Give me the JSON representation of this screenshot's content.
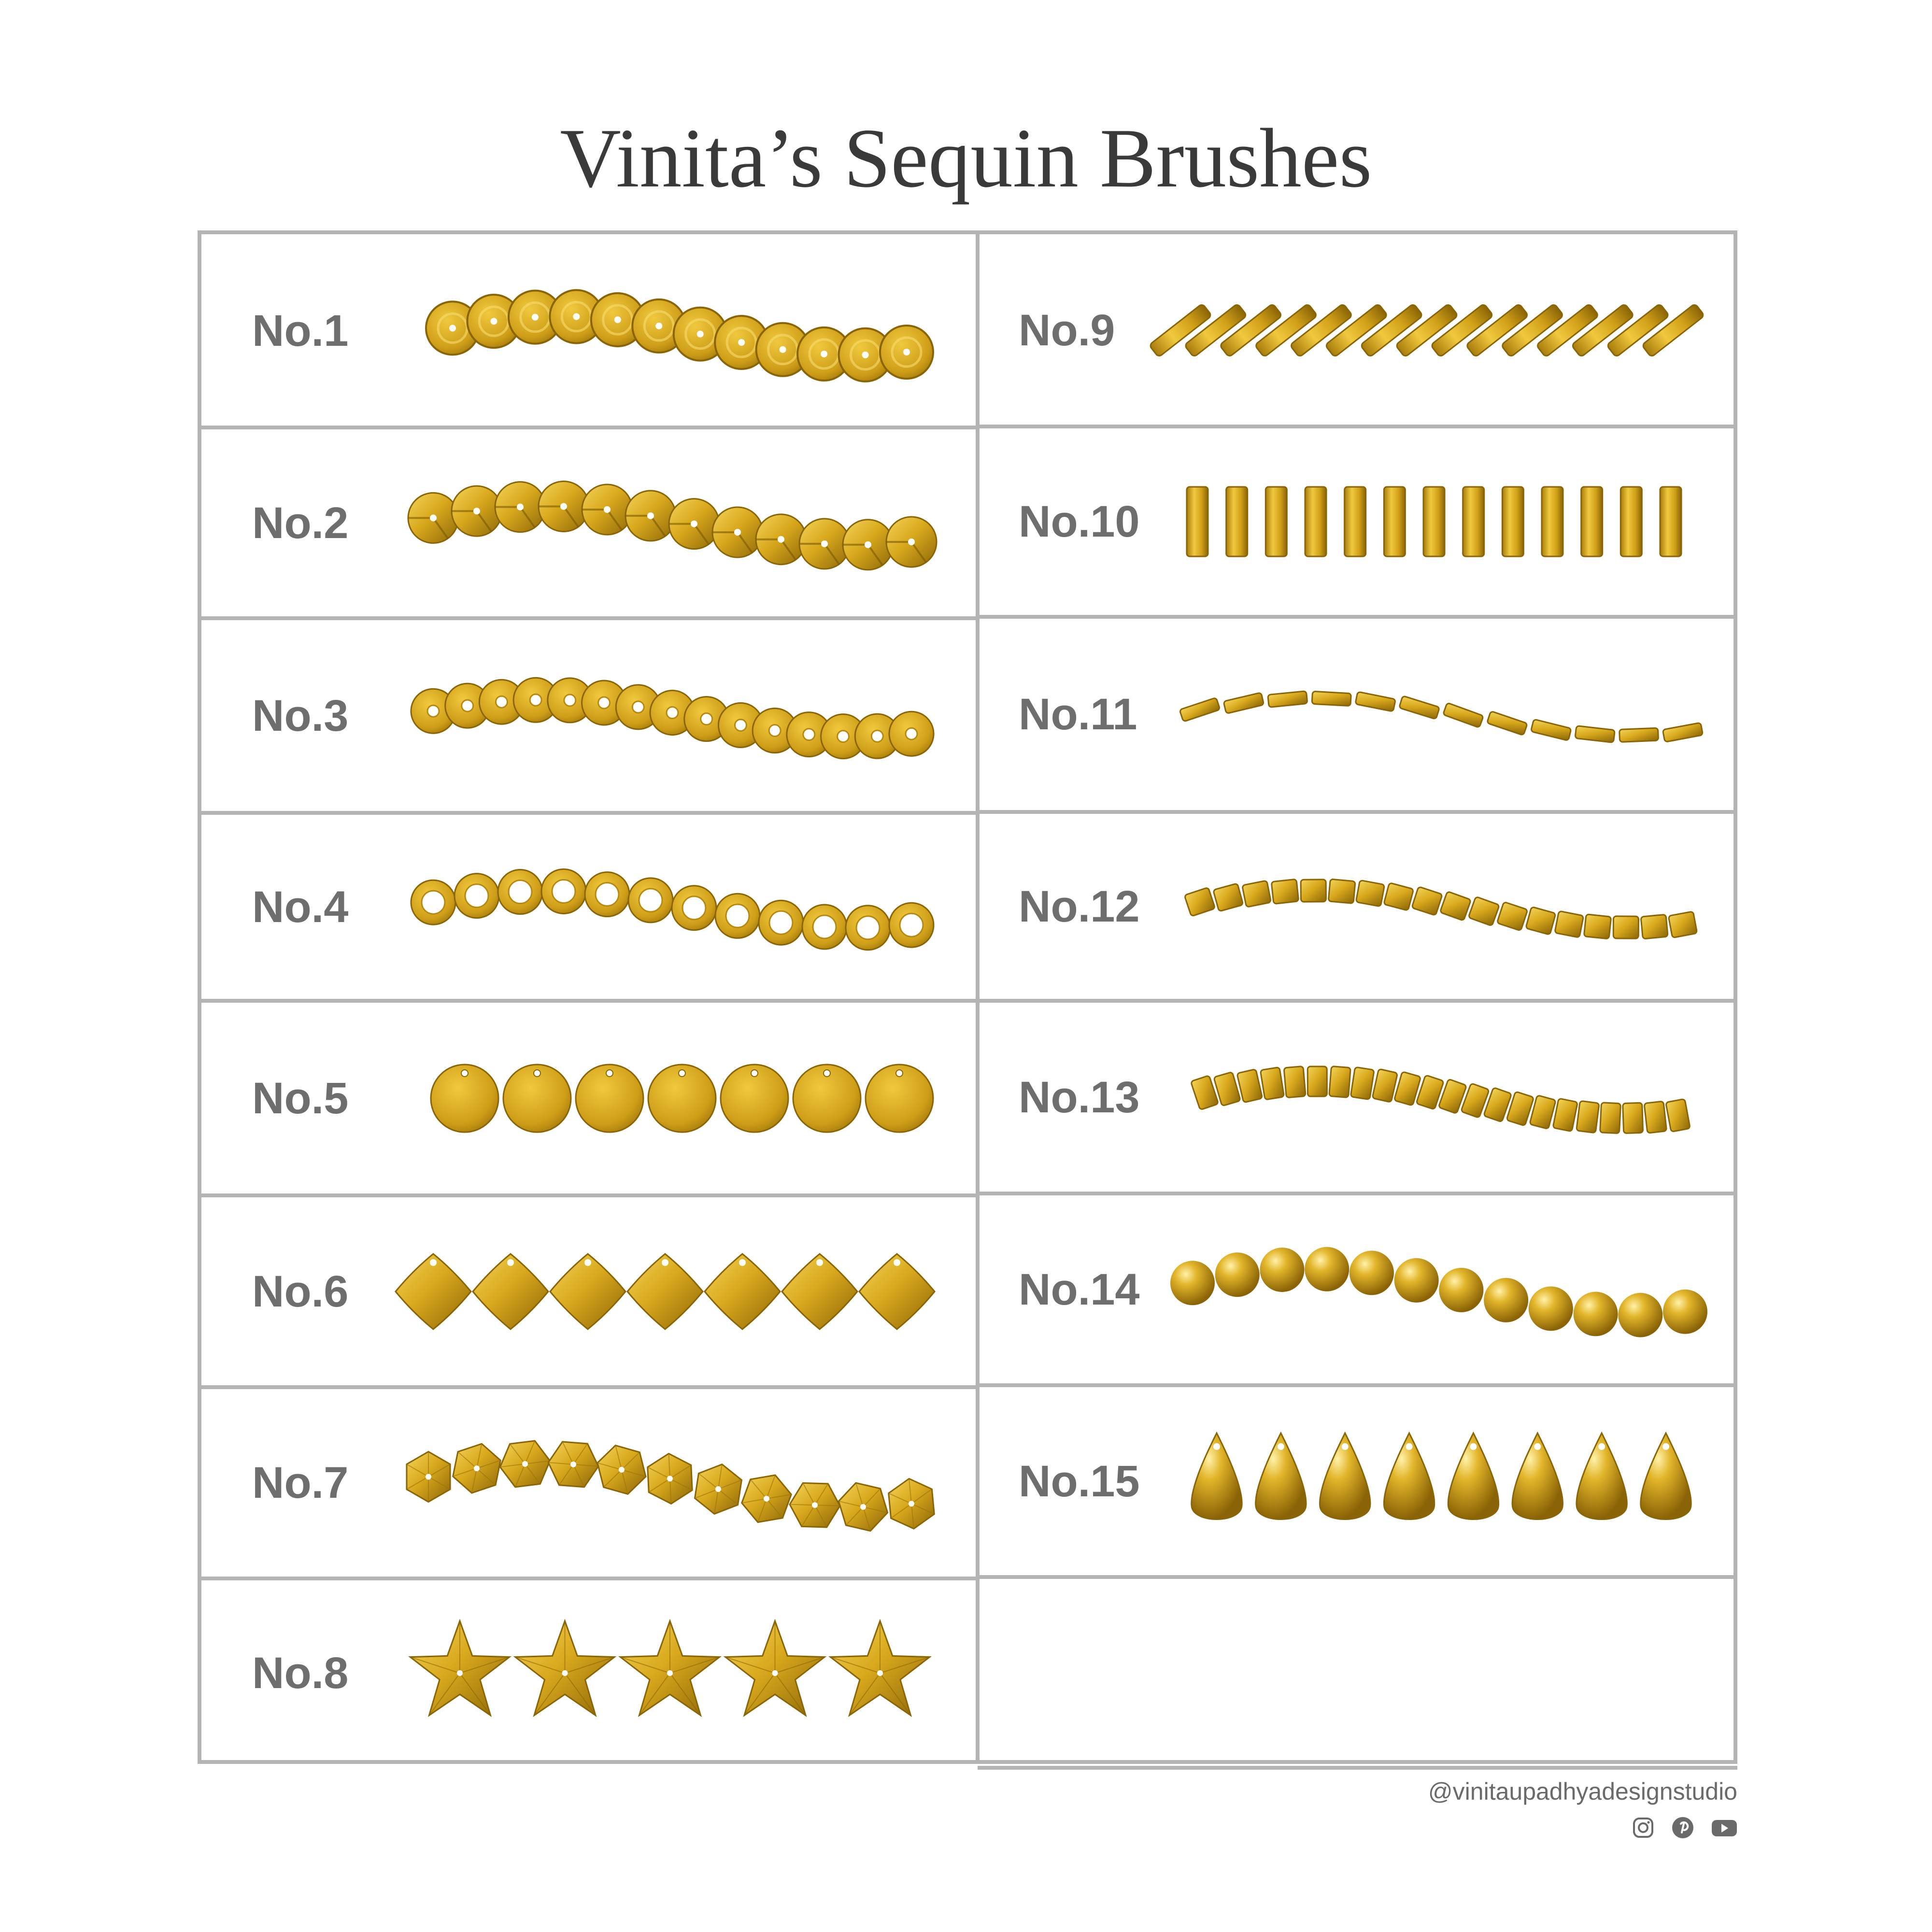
{
  "title": "Vinita’s Sequin Brushes",
  "left_column": [
    "No.1",
    "No.2",
    "No.3",
    "No.4",
    "No.5",
    "No.6",
    "No.7",
    "No.8"
  ],
  "right_column": [
    "No.9",
    "No.10",
    "No.11",
    "No.12",
    "No.13",
    "No.14",
    "No.15"
  ],
  "footer": {
    "handle": "@vinitaupadhyadesignstudio",
    "socials": [
      "instagram-icon",
      "pinterest-icon",
      "youtube-icon"
    ]
  },
  "colors": {
    "gold_light": "#f2cc42",
    "gold": "#d4a51c",
    "gold_dark": "#8a6508",
    "grid_line": "#b4b4b4",
    "label": "#6e6e6e"
  }
}
